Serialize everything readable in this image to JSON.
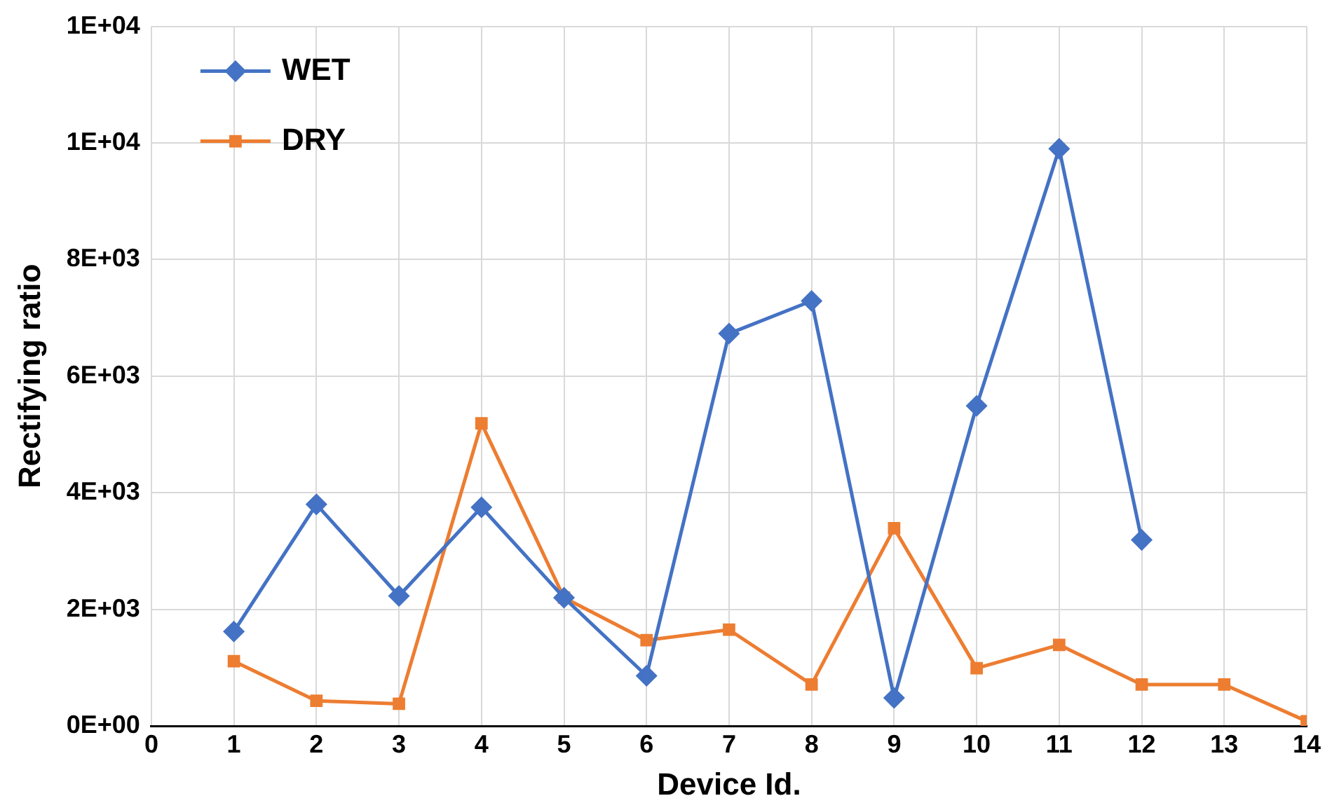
{
  "chart_data": {
    "type": "line",
    "xlabel": "Device Id.",
    "ylabel": "Rectifying ratio",
    "xlim": [
      0,
      14
    ],
    "xticks": [
      0,
      1,
      2,
      3,
      4,
      5,
      6,
      7,
      8,
      9,
      10,
      11,
      12,
      13,
      14
    ],
    "ylim": [
      0,
      12000
    ],
    "yticks": [
      {
        "value": 0,
        "label": "0E+00"
      },
      {
        "value": 2000,
        "label": "2E+03"
      },
      {
        "value": 4000,
        "label": "4E+03"
      },
      {
        "value": 6000,
        "label": "6E+03"
      },
      {
        "value": 8000,
        "label": "8E+03"
      },
      {
        "value": 10000,
        "label": "1E+04"
      },
      {
        "value": 12000,
        "label": "1E+04"
      }
    ],
    "grid": true,
    "legend": "top left",
    "line_style": "solid",
    "series": [
      {
        "name": "WET",
        "color": "#4472c4",
        "marker": "diamond",
        "x": [
          1,
          2,
          3,
          4,
          5,
          6,
          7,
          8,
          9,
          10,
          11,
          12
        ],
        "values": [
          1620,
          3800,
          2230,
          3750,
          2200,
          860,
          6730,
          7290,
          480,
          5490,
          9900,
          3190
        ]
      },
      {
        "name": "DRY",
        "color": "#ed7d31",
        "marker": "square",
        "x": [
          1,
          2,
          3,
          4,
          5,
          6,
          7,
          8,
          9,
          10,
          11,
          12,
          13,
          14
        ],
        "values": [
          1110,
          430,
          380,
          5190,
          2200,
          1470,
          1650,
          710,
          3390,
          990,
          1390,
          710,
          710,
          80
        ]
      }
    ]
  }
}
